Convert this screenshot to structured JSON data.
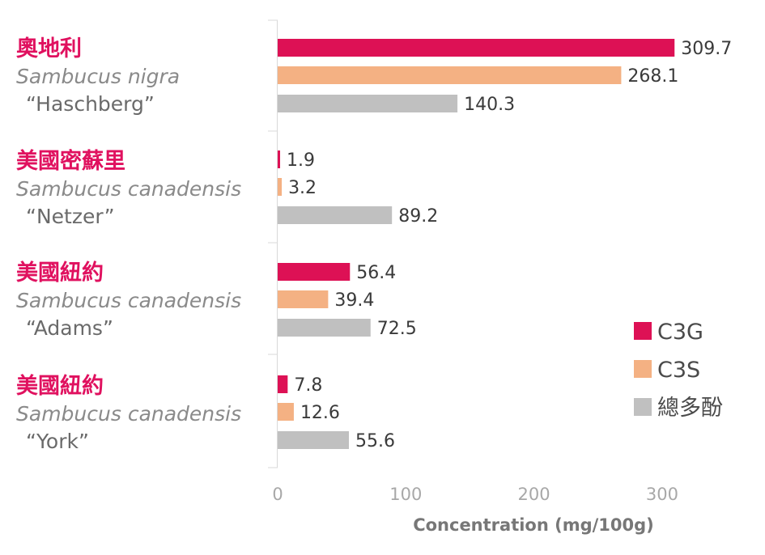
{
  "chart_data": {
    "type": "bar",
    "orientation": "horizontal",
    "categories": [
      {
        "region": "奧地利",
        "species": "Sambucus nigra",
        "cultivar": "“Haschberg”"
      },
      {
        "region": "美國密蘇里",
        "species": "Sambucus canadensis",
        "cultivar": "“Netzer”"
      },
      {
        "region": "美國紐約",
        "species": "Sambucus canadensis",
        "cultivar": "“Adams”"
      },
      {
        "region": "美國紐約",
        "species": "Sambucus canadensis",
        "cultivar": "“York”"
      }
    ],
    "series": [
      {
        "name": "C3G",
        "color": "#dd1155",
        "values": [
          309.7,
          1.9,
          56.4,
          7.8
        ],
        "labels": [
          "309.7",
          "1.9",
          "56.4",
          "7.8"
        ]
      },
      {
        "name": "C3S",
        "color": "#f4b183",
        "values": [
          268.1,
          3.2,
          39.4,
          12.6
        ],
        "labels": [
          "268.1",
          "3.2",
          "39.4",
          "12.6"
        ]
      },
      {
        "name": "總多酚",
        "color": "#c0c0c0",
        "values": [
          140.3,
          89.2,
          72.5,
          55.6
        ],
        "labels": [
          "140.3",
          "89.2",
          "72.5",
          "55.6"
        ]
      }
    ],
    "xticks": [
      "0",
      "100",
      "200",
      "300"
    ],
    "xlim": [
      0,
      300
    ],
    "xlabel": "Concentration (mg/100g)",
    "ylabel": "",
    "title": "",
    "legend_position": "right"
  }
}
